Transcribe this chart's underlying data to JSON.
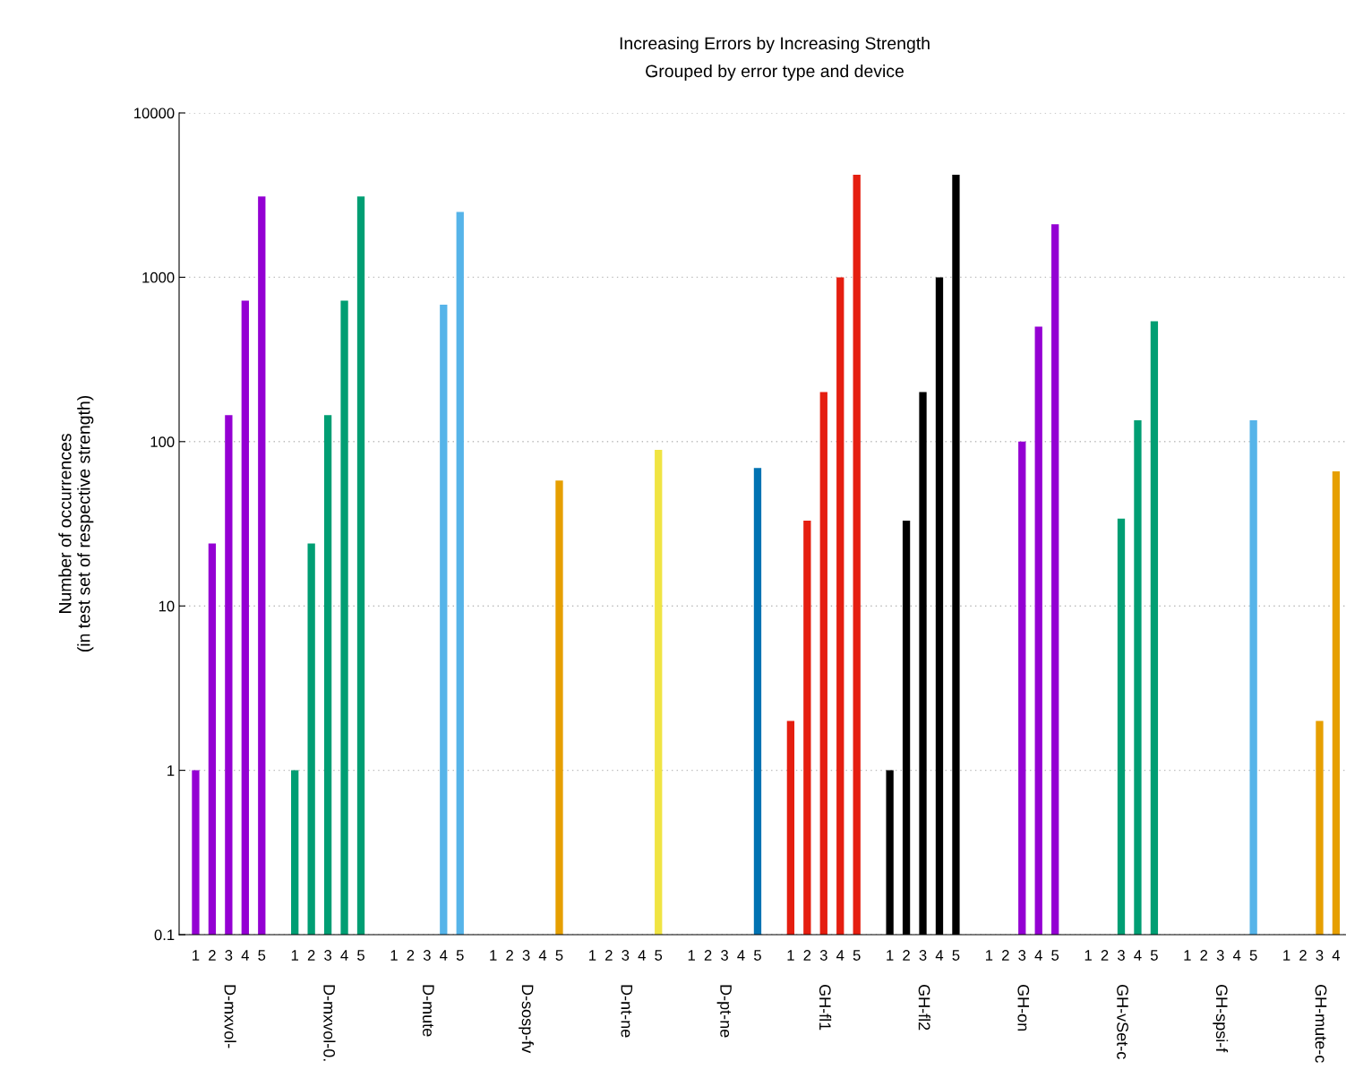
{
  "chart_data": {
    "type": "bar",
    "title": "Increasing Errors by Increasing Strength",
    "subtitle": "Grouped by error type and device",
    "ylabel": "Number of occurrences\n(in test set of respective strength)",
    "categories": [
      "1",
      "2",
      "3",
      "4",
      "5",
      null,
      "1",
      "2",
      "3",
      "4",
      "5",
      null,
      "1",
      "2",
      "3",
      "4",
      "5",
      null,
      "1",
      "2",
      "3",
      "4",
      "5",
      null,
      "1",
      "2",
      "3",
      "4",
      "5",
      null,
      "1",
      "2",
      "3",
      "4",
      "5",
      null,
      "1",
      "2",
      "3",
      "4",
      "5",
      null,
      "1",
      "2",
      "3",
      "4",
      "5",
      null,
      "1",
      "2",
      "3",
      "4",
      "5",
      null,
      "1",
      "2",
      "3",
      "4",
      "5",
      null,
      "1",
      "2",
      "3",
      "4",
      "5",
      null,
      "1",
      "2",
      "3",
      "4"
    ],
    "series": [
      {
        "color": "#9400d3",
        "values": [
          1,
          24,
          145,
          720,
          3100,
          null,
          null,
          null,
          null,
          null,
          null,
          null,
          null,
          null,
          null,
          null,
          null,
          null,
          null,
          null,
          null,
          null,
          null,
          null,
          null,
          null,
          null,
          null,
          null,
          null,
          null,
          null,
          null,
          null,
          null,
          null,
          null,
          null,
          null,
          null,
          null,
          null,
          null,
          null,
          null,
          null,
          null,
          null,
          null,
          null,
          null,
          null,
          null,
          null,
          null,
          null,
          null,
          null,
          null,
          null,
          null,
          null,
          null,
          null,
          null,
          null,
          null,
          null,
          null,
          null
        ]
      },
      {
        "color": "#009e73",
        "values": [
          null,
          null,
          null,
          null,
          null,
          null,
          1,
          24,
          145,
          720,
          3100,
          null,
          null,
          null,
          null,
          null,
          null,
          null,
          null,
          null,
          null,
          null,
          null,
          null,
          null,
          null,
          null,
          null,
          null,
          null,
          null,
          null,
          null,
          null,
          null,
          null,
          null,
          null,
          null,
          null,
          null,
          null,
          null,
          null,
          null,
          null,
          null,
          null,
          null,
          null,
          null,
          null,
          null,
          null,
          null,
          null,
          null,
          null,
          null,
          null,
          null,
          null,
          null,
          null,
          null,
          null,
          null,
          null,
          null,
          null
        ]
      },
      {
        "color": "#56b4e9",
        "values": [
          null,
          null,
          null,
          null,
          null,
          null,
          null,
          null,
          null,
          null,
          null,
          null,
          null,
          null,
          null,
          680,
          2500,
          null,
          null,
          null,
          null,
          null,
          null,
          null,
          null,
          null,
          null,
          null,
          null,
          null,
          null,
          null,
          null,
          null,
          null,
          null,
          null,
          null,
          null,
          null,
          null,
          null,
          null,
          null,
          null,
          null,
          null,
          null,
          null,
          null,
          null,
          null,
          null,
          null,
          null,
          null,
          null,
          null,
          null,
          null,
          null,
          null,
          null,
          null,
          null,
          null,
          null,
          null,
          null,
          null
        ]
      },
      {
        "color": "#e69f00",
        "values": [
          null,
          null,
          null,
          null,
          null,
          null,
          null,
          null,
          null,
          null,
          null,
          null,
          null,
          null,
          null,
          null,
          null,
          null,
          null,
          null,
          null,
          null,
          58,
          null,
          null,
          null,
          null,
          null,
          null,
          null,
          null,
          null,
          null,
          null,
          null,
          null,
          null,
          null,
          null,
          null,
          null,
          null,
          null,
          null,
          null,
          null,
          null,
          null,
          null,
          null,
          null,
          null,
          null,
          null,
          null,
          null,
          null,
          null,
          null,
          null,
          null,
          null,
          null,
          null,
          null,
          null,
          null,
          null,
          null,
          null
        ]
      },
      {
        "color": "#f0e442",
        "values": [
          null,
          null,
          null,
          null,
          null,
          null,
          null,
          null,
          null,
          null,
          null,
          null,
          null,
          null,
          null,
          null,
          null,
          null,
          null,
          null,
          null,
          null,
          null,
          null,
          null,
          null,
          null,
          null,
          89,
          null,
          null,
          null,
          null,
          null,
          null,
          null,
          null,
          null,
          null,
          null,
          null,
          null,
          null,
          null,
          null,
          null,
          null,
          null,
          null,
          null,
          null,
          null,
          null,
          null,
          null,
          null,
          null,
          null,
          null,
          null,
          null,
          null,
          null,
          null,
          null,
          null,
          null,
          null,
          null,
          null
        ]
      },
      {
        "color": "#0072b2",
        "values": [
          null,
          null,
          null,
          null,
          null,
          null,
          null,
          null,
          null,
          null,
          null,
          null,
          null,
          null,
          null,
          null,
          null,
          null,
          null,
          null,
          null,
          null,
          null,
          null,
          null,
          null,
          null,
          null,
          null,
          null,
          null,
          null,
          null,
          null,
          69,
          null,
          null,
          null,
          null,
          null,
          null,
          null,
          null,
          null,
          null,
          null,
          null,
          null,
          null,
          null,
          null,
          null,
          null,
          null,
          null,
          null,
          null,
          null,
          null,
          null,
          null,
          null,
          null,
          null,
          null,
          null,
          null,
          null,
          null,
          null
        ]
      },
      {
        "color": "#e51e10",
        "values": [
          null,
          null,
          null,
          null,
          null,
          null,
          null,
          null,
          null,
          null,
          null,
          null,
          null,
          null,
          null,
          null,
          null,
          null,
          null,
          null,
          null,
          null,
          null,
          null,
          null,
          null,
          null,
          null,
          null,
          null,
          null,
          null,
          null,
          null,
          null,
          null,
          2,
          33,
          200,
          1000,
          4200,
          null,
          null,
          null,
          null,
          null,
          null,
          null,
          null,
          null,
          null,
          null,
          null,
          null,
          null,
          null,
          null,
          null,
          null,
          null,
          null,
          null,
          null,
          null,
          null,
          null,
          null,
          null,
          null,
          null
        ]
      },
      {
        "color": "#000000",
        "values": [
          null,
          null,
          null,
          null,
          null,
          null,
          null,
          null,
          null,
          null,
          null,
          null,
          null,
          null,
          null,
          null,
          null,
          null,
          null,
          null,
          null,
          null,
          null,
          null,
          null,
          null,
          null,
          null,
          null,
          null,
          null,
          null,
          null,
          null,
          null,
          null,
          null,
          null,
          null,
          null,
          null,
          null,
          1,
          33,
          200,
          1000,
          4200,
          null,
          null,
          null,
          null,
          null,
          null,
          null,
          null,
          null,
          null,
          null,
          null,
          null,
          null,
          null,
          null,
          null,
          null,
          null,
          null,
          null,
          null,
          null
        ]
      },
      {
        "color": "#9400d3",
        "values": [
          null,
          null,
          null,
          null,
          null,
          null,
          null,
          null,
          null,
          null,
          null,
          null,
          null,
          null,
          null,
          null,
          null,
          null,
          null,
          null,
          null,
          null,
          null,
          null,
          null,
          null,
          null,
          null,
          null,
          null,
          null,
          null,
          null,
          null,
          null,
          null,
          null,
          null,
          null,
          null,
          null,
          null,
          null,
          null,
          null,
          null,
          null,
          null,
          null,
          null,
          100,
          500,
          2100,
          null,
          null,
          null,
          null,
          null,
          null,
          null,
          null,
          null,
          null,
          null,
          null,
          null,
          null,
          null,
          null,
          null
        ]
      },
      {
        "color": "#009e73",
        "values": [
          null,
          null,
          null,
          null,
          null,
          null,
          null,
          null,
          null,
          null,
          null,
          null,
          null,
          null,
          null,
          null,
          null,
          null,
          null,
          null,
          null,
          null,
          null,
          null,
          null,
          null,
          null,
          null,
          null,
          null,
          null,
          null,
          null,
          null,
          null,
          null,
          null,
          null,
          null,
          null,
          null,
          null,
          null,
          null,
          null,
          null,
          null,
          null,
          null,
          null,
          null,
          null,
          null,
          null,
          null,
          null,
          34,
          135,
          540,
          null,
          null,
          null,
          null,
          null,
          null,
          null,
          null,
          null,
          null,
          null
        ]
      },
      {
        "color": "#56b4e9",
        "values": [
          null,
          null,
          null,
          null,
          null,
          null,
          null,
          null,
          null,
          null,
          null,
          null,
          null,
          null,
          null,
          null,
          null,
          null,
          null,
          null,
          null,
          null,
          null,
          null,
          null,
          null,
          null,
          null,
          null,
          null,
          null,
          null,
          null,
          null,
          null,
          null,
          null,
          null,
          null,
          null,
          null,
          null,
          null,
          null,
          null,
          null,
          null,
          null,
          null,
          null,
          null,
          null,
          null,
          null,
          null,
          null,
          null,
          null,
          null,
          null,
          null,
          null,
          null,
          null,
          135,
          null,
          null,
          null,
          null,
          null
        ]
      },
      {
        "color": "#e69f00",
        "values": [
          null,
          null,
          null,
          null,
          null,
          null,
          null,
          null,
          null,
          null,
          null,
          null,
          null,
          null,
          null,
          null,
          null,
          null,
          null,
          null,
          null,
          null,
          null,
          null,
          null,
          null,
          null,
          null,
          null,
          null,
          null,
          null,
          null,
          null,
          null,
          null,
          null,
          null,
          null,
          null,
          null,
          null,
          null,
          null,
          null,
          null,
          null,
          null,
          null,
          null,
          null,
          null,
          null,
          null,
          null,
          null,
          null,
          null,
          null,
          null,
          null,
          null,
          null,
          null,
          null,
          null,
          null,
          null,
          2,
          66
        ]
      }
    ],
    "annotations": [
      "D-mxvol-",
      "D-mxvol-0.",
      "D-mute",
      "D-sosp-fv",
      "D-nt-ne",
      "D-pt-ne",
      "GH-fl1",
      "GH-fl2",
      "GH-on",
      "GH-vSet-c",
      "GH-spsi-f",
      "GH-mute-c"
    ],
    "log": "y",
    "ylim": [
      0.1,
      10000
    ],
    "yticks": [
      0.1,
      1,
      10,
      100,
      1000,
      10000
    ],
    "grid": "y",
    "legend": false
  }
}
